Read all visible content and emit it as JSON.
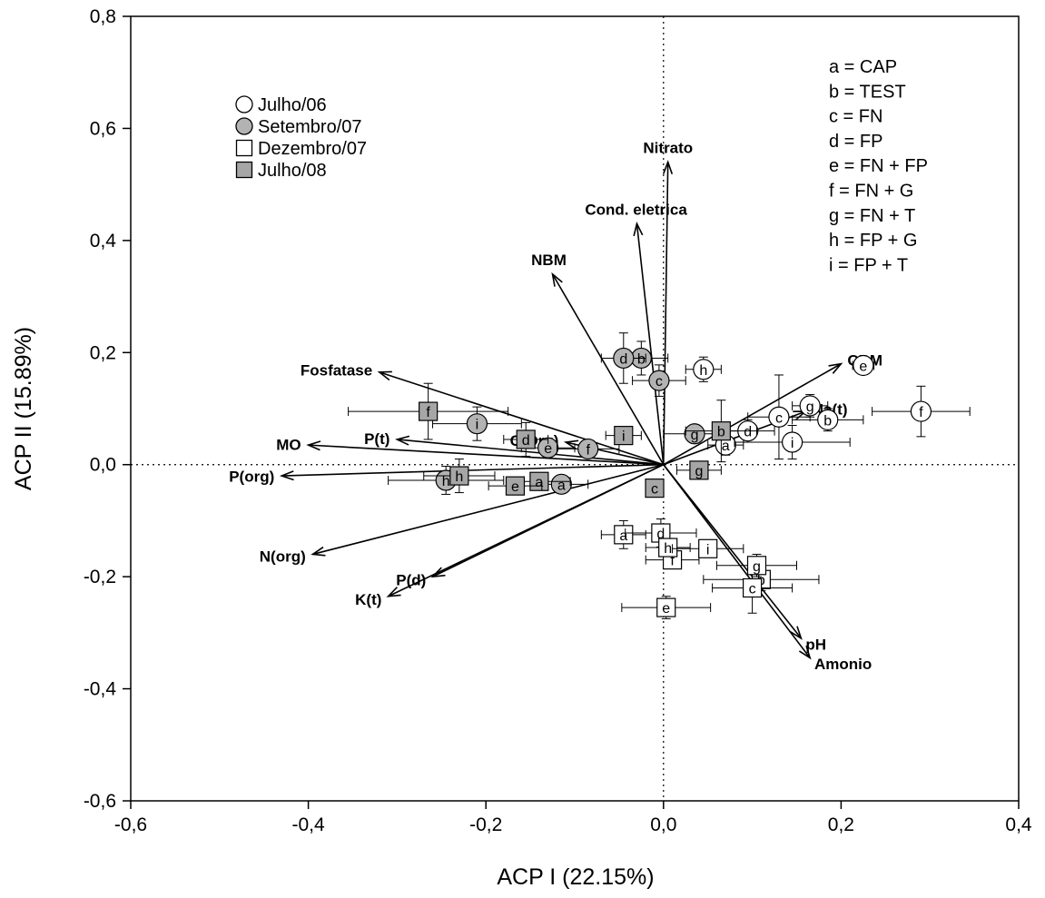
{
  "chart_data": {
    "type": "scatter",
    "title": "",
    "xlabel": "ACP I (22.15%)",
    "ylabel": "ACP II (15.89%)",
    "xlim": [
      -0.6,
      0.4
    ],
    "ylim": [
      -0.6,
      0.8
    ],
    "xticks": [
      -0.6,
      -0.4,
      -0.2,
      0.0,
      0.2,
      0.4
    ],
    "yticks": [
      -0.6,
      -0.4,
      -0.2,
      0.0,
      0.2,
      0.4,
      0.6,
      0.8
    ],
    "xtick_labels": [
      "-0,6",
      "-0,4",
      "-0,2",
      "0,0",
      "0,2",
      "0,4"
    ],
    "ytick_labels": [
      "-0,6",
      "-0,4",
      "-0,2",
      "0,0",
      "0,2",
      "0,4",
      "0,6",
      "0,8"
    ],
    "grid": false,
    "reference_lines": {
      "x": 0,
      "y": 0,
      "style": "dotted"
    },
    "legend": {
      "position": "top-left",
      "entries": [
        {
          "label": "Julho/06",
          "marker": "circle",
          "fill": "#ffffff"
        },
        {
          "label": "Setembro/07",
          "marker": "circle",
          "fill": "#b3b3b3"
        },
        {
          "label": "Dezembro/07",
          "marker": "square",
          "fill": "#ffffff"
        },
        {
          "label": "Julho/08",
          "marker": "square",
          "fill": "#a6a6a6"
        }
      ]
    },
    "treatment_key": [
      "a = CAP",
      "b = TEST",
      "c = FN",
      "d = FP",
      "e = FN + FP",
      "f  = FN + G",
      "g = FN + T",
      "h = FP + G",
      "i = FP + T"
    ],
    "vectors": [
      {
        "label": "Nitrato",
        "x": 0.005,
        "y": 0.54
      },
      {
        "label": "Cond. eletrica",
        "x": -0.03,
        "y": 0.43
      },
      {
        "label": "NBM",
        "x": -0.125,
        "y": 0.34
      },
      {
        "label": "Fosfatase",
        "x": -0.32,
        "y": 0.165
      },
      {
        "label": "CBM",
        "x": 0.2,
        "y": 0.18
      },
      {
        "label": "Na(t)",
        "x": 0.16,
        "y": 0.095
      },
      {
        "label": "C(Org)",
        "x": -0.11,
        "y": 0.04
      },
      {
        "label": "P(t)",
        "x": -0.3,
        "y": 0.045
      },
      {
        "label": "MO",
        "x": -0.4,
        "y": 0.035
      },
      {
        "label": "P(org)",
        "x": -0.43,
        "y": -0.02
      },
      {
        "label": "N(org)",
        "x": -0.395,
        "y": -0.16
      },
      {
        "label": "P(d)",
        "x": -0.26,
        "y": -0.2
      },
      {
        "label": "K(t)",
        "x": -0.31,
        "y": -0.235
      },
      {
        "label": "pH",
        "x": 0.155,
        "y": -0.31
      },
      {
        "label": "Amonio",
        "x": 0.165,
        "y": -0.345
      }
    ],
    "series": [
      {
        "name": "Julho/06",
        "marker": "circle",
        "fill": "#ffffff",
        "points": [
          {
            "label": "a",
            "x": 0.07,
            "y": 0.035,
            "xerr": 0.02,
            "yerr": 0.018
          },
          {
            "label": "b",
            "x": 0.185,
            "y": 0.08,
            "xerr": 0.04,
            "yerr": 0.02
          },
          {
            "label": "c",
            "x": 0.13,
            "y": 0.085,
            "xerr": 0.035,
            "yerr": 0.075
          },
          {
            "label": "d",
            "x": 0.095,
            "y": 0.06,
            "xerr": 0.03,
            "yerr": 0.02
          },
          {
            "label": "e",
            "x": 0.225,
            "y": 0.177,
            "xerr": 0.012,
            "yerr": 0.008
          },
          {
            "label": "f",
            "x": 0.29,
            "y": 0.095,
            "xerr": 0.055,
            "yerr": 0.045
          },
          {
            "label": "g",
            "x": 0.165,
            "y": 0.105,
            "xerr": 0.02,
            "yerr": 0.02
          },
          {
            "label": "h",
            "x": 0.045,
            "y": 0.17,
            "xerr": 0.02,
            "yerr": 0.022
          },
          {
            "label": "i",
            "x": 0.145,
            "y": 0.04,
            "xerr": 0.065,
            "yerr": 0.03
          }
        ]
      },
      {
        "name": "Setembro/07",
        "marker": "circle",
        "fill": "#b3b3b3",
        "points": [
          {
            "label": "a",
            "x": -0.115,
            "y": -0.035,
            "xerr": 0.03,
            "yerr": 0.012
          },
          {
            "label": "b",
            "x": -0.025,
            "y": 0.19,
            "xerr": 0.03,
            "yerr": 0.03
          },
          {
            "label": "c",
            "x": -0.005,
            "y": 0.15,
            "xerr": 0.03,
            "yerr": 0.028
          },
          {
            "label": "d",
            "x": -0.045,
            "y": 0.19,
            "xerr": 0.025,
            "yerr": 0.045
          },
          {
            "label": "e",
            "x": -0.13,
            "y": 0.03,
            "xerr": 0.03,
            "yerr": 0.012
          },
          {
            "label": "f",
            "x": -0.085,
            "y": 0.028,
            "xerr": 0.035,
            "yerr": 0.012
          },
          {
            "label": "g",
            "x": 0.035,
            "y": 0.055,
            "xerr": 0.035,
            "yerr": 0.015
          },
          {
            "label": "h",
            "x": -0.245,
            "y": -0.028,
            "xerr": 0.065,
            "yerr": 0.025
          },
          {
            "label": "i",
            "x": -0.21,
            "y": 0.073,
            "xerr": 0.05,
            "yerr": 0.03
          }
        ]
      },
      {
        "name": "Dezembro/07",
        "marker": "square",
        "fill": "#ffffff",
        "points": [
          {
            "label": "a",
            "x": -0.045,
            "y": -0.125,
            "xerr": 0.025,
            "yerr": 0.025
          },
          {
            "label": "b",
            "x": 0.11,
            "y": -0.205,
            "xerr": 0.065,
            "yerr": 0.02
          },
          {
            "label": "c",
            "x": 0.1,
            "y": -0.22,
            "xerr": 0.045,
            "yerr": 0.045
          },
          {
            "label": "d",
            "x": -0.003,
            "y": -0.122,
            "xerr": 0.04,
            "yerr": 0.025
          },
          {
            "label": "e",
            "x": 0.003,
            "y": -0.255,
            "xerr": 0.05,
            "yerr": 0.02
          },
          {
            "label": "f",
            "x": 0.01,
            "y": -0.17,
            "xerr": 0.03,
            "yerr": 0.012
          },
          {
            "label": "g",
            "x": 0.105,
            "y": -0.18,
            "xerr": 0.045,
            "yerr": 0.02
          },
          {
            "label": "h",
            "x": 0.005,
            "y": -0.148,
            "xerr": 0.025,
            "yerr": 0.015
          },
          {
            "label": "i",
            "x": 0.05,
            "y": -0.15,
            "xerr": 0.04,
            "yerr": 0.015
          }
        ]
      },
      {
        "name": "Julho/08",
        "marker": "square",
        "fill": "#a6a6a6",
        "points": [
          {
            "label": "a",
            "x": -0.14,
            "y": -0.03,
            "xerr": 0.035,
            "yerr": 0.015
          },
          {
            "label": "b",
            "x": 0.065,
            "y": 0.06,
            "xerr": 0.04,
            "yerr": 0.055
          },
          {
            "label": "c",
            "x": -0.01,
            "y": -0.042,
            "xerr": 0.01,
            "yerr": 0.012
          },
          {
            "label": "d",
            "x": -0.155,
            "y": 0.045,
            "xerr": 0.025,
            "yerr": 0.03
          },
          {
            "label": "e",
            "x": -0.167,
            "y": -0.038,
            "xerr": 0.03,
            "yerr": 0.012
          },
          {
            "label": "f",
            "x": -0.265,
            "y": 0.095,
            "xerr": 0.09,
            "yerr": 0.05
          },
          {
            "label": "g",
            "x": 0.04,
            "y": -0.01,
            "xerr": 0.025,
            "yerr": 0.015
          },
          {
            "label": "h",
            "x": -0.23,
            "y": -0.02,
            "xerr": 0.04,
            "yerr": 0.03
          },
          {
            "label": "i",
            "x": -0.045,
            "y": 0.052,
            "xerr": 0.02,
            "yerr": 0.015
          }
        ]
      }
    ]
  }
}
